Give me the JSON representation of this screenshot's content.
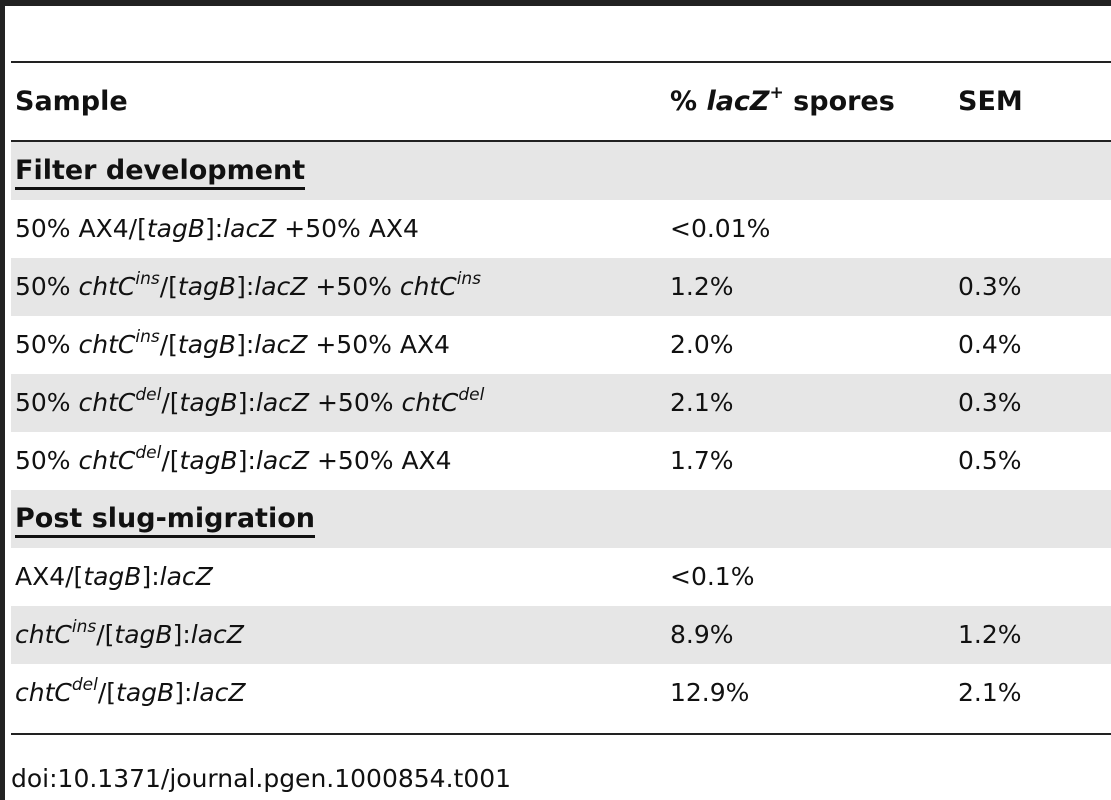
{
  "table": {
    "headers": {
      "sample": "Sample",
      "lacz_pre": "% ",
      "lacz_gene": "lacZ",
      "lacz_sup": "+",
      "lacz_post": " spores",
      "sem": "SEM"
    },
    "sections": [
      {
        "title": "Filter development",
        "rows": [
          {
            "text": "50% AX4/[tagB]:lacZ +50% AX4",
            "pct": "<0.01%",
            "sem": ""
          },
          {
            "text": "50% chtC ins /[tagB]:lacZ +50% chtC ins",
            "pct": "1.2%",
            "sem": "0.3%"
          },
          {
            "text": "50% chtC ins /[tagB]:lacZ +50% AX4",
            "pct": "2.0%",
            "sem": "0.4%"
          },
          {
            "text": "50% chtC del /[tagB]:lacZ +50% chtC del",
            "pct": "2.1%",
            "sem": "0.3%"
          },
          {
            "text": "50% chtC del /[tagB]:lacZ +50% AX4",
            "pct": "1.7%",
            "sem": "0.5%"
          }
        ]
      },
      {
        "title": "Post slug-migration",
        "rows": [
          {
            "text": "AX4/[tagB]:lacZ",
            "pct": "<0.1%",
            "sem": ""
          },
          {
            "text": "chtC ins /[tagB]:lacZ",
            "pct": "8.9%",
            "sem": "1.2%"
          },
          {
            "text": "chtC del /[tagB]:lacZ",
            "pct": "12.9%",
            "sem": "2.1%"
          }
        ]
      }
    ]
  },
  "doi": "doi:10.1371/journal.pgen.1000854.t001"
}
